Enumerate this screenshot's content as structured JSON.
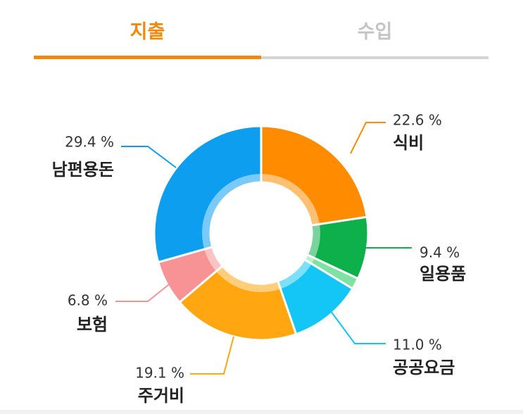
{
  "tabs": {
    "expense": "지출",
    "income": "수입"
  },
  "chart_data": {
    "type": "pie",
    "title": "",
    "categories": [
      "식비",
      "일용품",
      "",
      "공공요금",
      "주거비",
      "보험",
      "남편용돈"
    ],
    "values": [
      22.6,
      9.4,
      1.7,
      11.0,
      19.1,
      6.8,
      29.4
    ],
    "value_labels": [
      "22.6 %",
      "9.4 %",
      "",
      "11.0 %",
      "19.1 %",
      "6.8 %",
      "29.4 %"
    ],
    "colors": [
      "#ff8c00",
      "#0db04b",
      "#7ee2a3",
      "#13c6f5",
      "#ffa610",
      "#f79394",
      "#0e9ef0"
    ],
    "donut": true
  }
}
